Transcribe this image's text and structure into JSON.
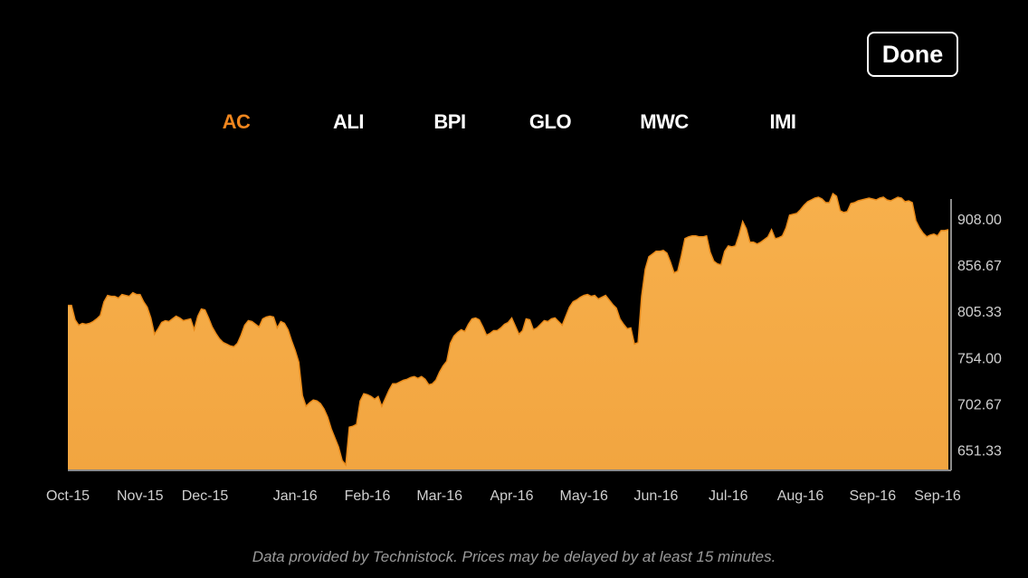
{
  "header": {
    "done_label": "Done"
  },
  "tabs": [
    {
      "label": "AC",
      "active": true
    },
    {
      "label": "ALI",
      "active": false
    },
    {
      "label": "BPI",
      "active": false
    },
    {
      "label": "GLO",
      "active": false
    },
    {
      "label": "MWC",
      "active": false
    },
    {
      "label": "IMI",
      "active": false
    }
  ],
  "colors": {
    "accent": "#f0861e",
    "area_fill": "#f5ad4a",
    "background": "#000000",
    "axis_text": "#d0d0d0"
  },
  "chart_data": {
    "type": "area",
    "title": "",
    "xlabel": "",
    "ylabel": "",
    "ylim": [
      630,
      940
    ],
    "y_ticks": [
      651.33,
      702.67,
      754.0,
      805.33,
      856.67,
      908.0
    ],
    "y_tick_labels": [
      "651.33",
      "702.67",
      "754.00",
      "805.33",
      "856.67",
      "908.00"
    ],
    "y_axis_position": "right",
    "grid": false,
    "x_tick_labels": [
      "Oct-15",
      "Nov-15",
      "Dec-15",
      "Jan-16",
      "Feb-16",
      "Mar-16",
      "Apr-16",
      "May-16",
      "Jun-16",
      "Jul-16",
      "Aug-16",
      "Sep-16",
      "Sep-16"
    ],
    "x_tick_index": [
      0,
      20,
      38,
      63,
      83,
      103,
      123,
      143,
      163,
      183,
      203,
      223,
      241
    ],
    "series": [
      {
        "values": [
          812,
          812,
          796,
          790,
          792,
          791,
          792,
          794,
          797,
          801,
          816,
          823,
          822,
          822,
          820,
          824,
          823,
          822,
          826,
          824,
          824,
          816,
          810,
          798,
          780,
          786,
          793,
          795,
          794,
          797,
          800,
          798,
          795,
          796,
          797,
          785,
          800,
          808,
          807,
          798,
          788,
          781,
          775,
          771,
          769,
          767,
          766,
          770,
          779,
          790,
          795,
          794,
          791,
          788,
          797,
          799,
          800,
          799,
          787,
          794,
          792,
          785,
          773,
          762,
          749,
          712,
          700,
          704,
          707,
          706,
          703,
          697,
          688,
          675,
          665,
          655,
          640,
          635,
          677,
          678,
          680,
          706,
          714,
          713,
          711,
          708,
          711,
          700,
          709,
          718,
          725,
          725,
          727,
          729,
          730,
          732,
          733,
          731,
          733,
          730,
          724,
          725,
          729,
          738,
          745,
          750,
          770,
          778,
          782,
          785,
          783,
          791,
          797,
          798,
          796,
          788,
          779,
          781,
          784,
          784,
          787,
          791,
          793,
          798,
          789,
          780,
          784,
          797,
          796,
          785,
          787,
          791,
          795,
          794,
          797,
          798,
          794,
          790,
          800,
          810,
          816,
          818,
          821,
          823,
          824,
          822,
          823,
          819,
          821,
          823,
          818,
          813,
          809,
          797,
          791,
          786,
          787,
          769,
          771,
          822,
          852,
          866,
          869,
          872,
          872,
          873,
          870,
          860,
          848,
          850,
          867,
          886,
          888,
          889,
          889,
          888,
          888,
          889,
          871,
          861,
          858,
          857,
          872,
          878,
          877,
          878,
          890,
          905,
          897,
          882,
          882,
          880,
          882,
          885,
          888,
          896,
          886,
          887,
          889,
          898,
          912,
          913,
          914,
          918,
          923,
          927,
          929,
          931,
          932,
          930,
          926,
          926,
          936,
          933,
          917,
          915,
          916,
          925,
          926,
          928,
          929,
          930,
          931,
          930,
          929,
          931,
          932,
          929,
          928,
          930,
          932,
          931,
          927,
          928,
          926,
          906,
          898,
          892,
          888,
          890,
          891,
          889,
          895,
          895,
          896
        ]
      }
    ]
  },
  "footer": {
    "note": "Data provided by Technistock. Prices may be delayed by at least 15 minutes."
  }
}
